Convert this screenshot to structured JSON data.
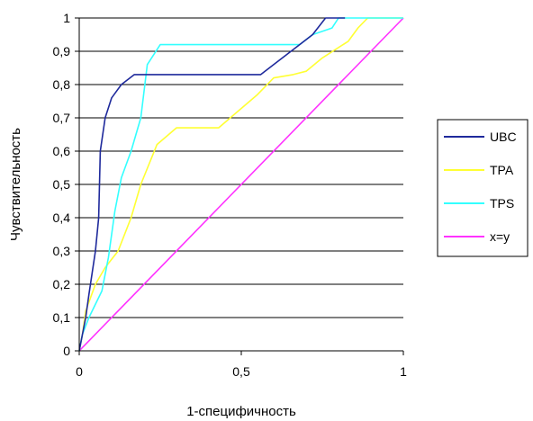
{
  "chart_data": {
    "type": "line",
    "xlabel": "1-специфичность",
    "ylabel": "Чувствительность",
    "xlim": [
      0,
      1
    ],
    "ylim": [
      0,
      1
    ],
    "x_ticks": [
      "0",
      "0,5",
      "1"
    ],
    "x_tick_values": [
      0,
      0.5,
      1
    ],
    "y_ticks": [
      "0",
      "0,1",
      "0,2",
      "0,3",
      "0,4",
      "0,5",
      "0,6",
      "0,7",
      "0,8",
      "0,9",
      "1"
    ],
    "y_tick_values": [
      0,
      0.1,
      0.2,
      0.3,
      0.4,
      0.5,
      0.6,
      0.7,
      0.8,
      0.9,
      1
    ],
    "grid": "horizontal",
    "legend_position": "right",
    "series": [
      {
        "name": "UBC",
        "color": "#1f2a9c",
        "points": [
          [
            0,
            0
          ],
          [
            0.01,
            0.05
          ],
          [
            0.02,
            0.1
          ],
          [
            0.03,
            0.17
          ],
          [
            0.05,
            0.3
          ],
          [
            0.06,
            0.4
          ],
          [
            0.065,
            0.6
          ],
          [
            0.08,
            0.7
          ],
          [
            0.1,
            0.76
          ],
          [
            0.13,
            0.8
          ],
          [
            0.17,
            0.83
          ],
          [
            0.3,
            0.83
          ],
          [
            0.56,
            0.83
          ],
          [
            0.6,
            0.86
          ],
          [
            0.68,
            0.92
          ],
          [
            0.72,
            0.95
          ],
          [
            0.76,
            1.0
          ],
          [
            0.82,
            1.0
          ]
        ]
      },
      {
        "name": "TPA",
        "color": "#ffff33",
        "points": [
          [
            0,
            0
          ],
          [
            0.01,
            0.05
          ],
          [
            0.02,
            0.12
          ],
          [
            0.05,
            0.2
          ],
          [
            0.08,
            0.25
          ],
          [
            0.12,
            0.3
          ],
          [
            0.16,
            0.4
          ],
          [
            0.19,
            0.5
          ],
          [
            0.24,
            0.62
          ],
          [
            0.3,
            0.67
          ],
          [
            0.43,
            0.67
          ],
          [
            0.55,
            0.77
          ],
          [
            0.6,
            0.82
          ],
          [
            0.66,
            0.83
          ],
          [
            0.7,
            0.84
          ],
          [
            0.75,
            0.88
          ],
          [
            0.83,
            0.93
          ],
          [
            0.86,
            0.97
          ],
          [
            0.89,
            1.0
          ],
          [
            1.0,
            1.0
          ]
        ]
      },
      {
        "name": "TPS",
        "color": "#33ffff",
        "points": [
          [
            0,
            0
          ],
          [
            0.01,
            0.05
          ],
          [
            0.03,
            0.1
          ],
          [
            0.07,
            0.18
          ],
          [
            0.09,
            0.28
          ],
          [
            0.11,
            0.42
          ],
          [
            0.13,
            0.52
          ],
          [
            0.16,
            0.6
          ],
          [
            0.19,
            0.7
          ],
          [
            0.2,
            0.78
          ],
          [
            0.21,
            0.86
          ],
          [
            0.25,
            0.92
          ],
          [
            0.68,
            0.92
          ],
          [
            0.72,
            0.95
          ],
          [
            0.78,
            0.97
          ],
          [
            0.8,
            1.0
          ],
          [
            1.0,
            1.0
          ]
        ]
      },
      {
        "name": "x=y",
        "color": "#ff33ff",
        "points": [
          [
            0,
            0
          ],
          [
            1,
            1
          ]
        ]
      }
    ]
  }
}
